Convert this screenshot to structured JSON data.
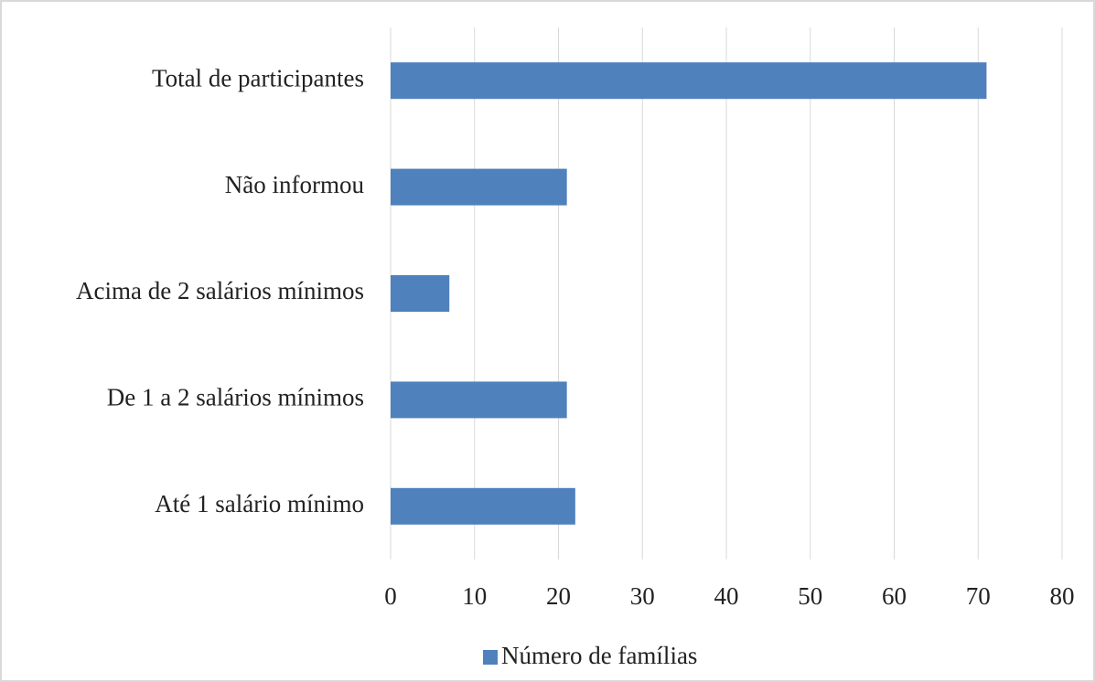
{
  "chart_data": {
    "type": "bar",
    "orientation": "horizontal",
    "categories": [
      "Total de participantes",
      "Não informou",
      "Acima de 2 salários mínimos",
      "De 1 a 2 salários mínimos",
      "Até 1 salário mínimo"
    ],
    "series": [
      {
        "name": "Número de famílias",
        "color": "#4f81bd",
        "values": [
          71,
          21,
          7,
          21,
          22
        ]
      }
    ],
    "xlim": [
      0,
      80
    ],
    "xticks": [
      0,
      10,
      20,
      30,
      40,
      50,
      60,
      70,
      80
    ],
    "grid": true,
    "legend": "bottom"
  }
}
